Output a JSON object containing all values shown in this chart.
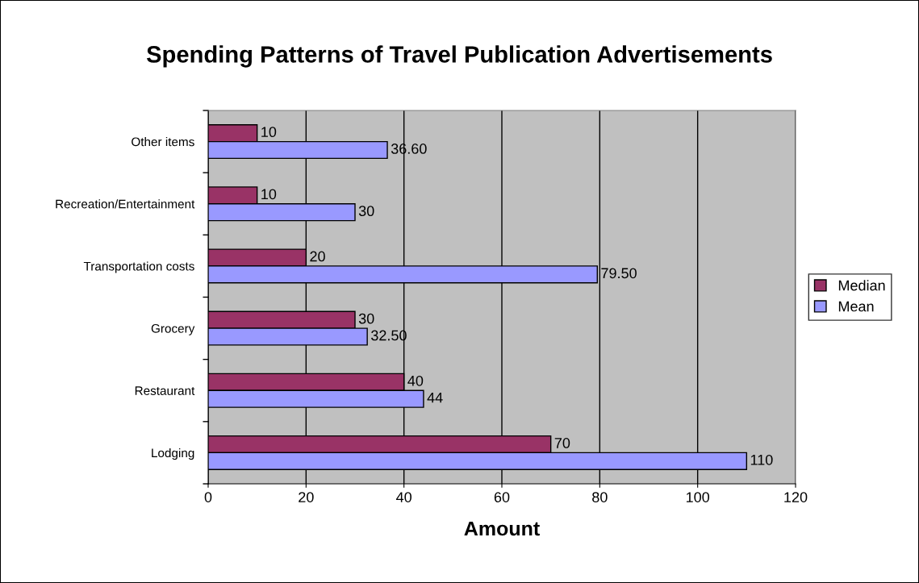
{
  "chart_data": {
    "type": "bar",
    "orientation": "horizontal",
    "title": "Spending Patterns of Travel Publication Advertisements",
    "xlabel": "Amount",
    "categories": [
      "Other items",
      "Recreation/Entertainment",
      "Transportation costs",
      "Grocery",
      "Restaurant",
      "Lodging"
    ],
    "series": [
      {
        "name": "Median",
        "color": "#993366",
        "values": [
          10,
          10,
          20,
          30,
          40,
          70
        ],
        "value_labels": [
          "10",
          "10",
          "20",
          "30",
          "40",
          "70"
        ]
      },
      {
        "name": "Mean",
        "color": "#9999ff",
        "values": [
          36.6,
          30,
          79.5,
          32.5,
          44,
          110
        ],
        "value_labels": [
          "36.60",
          "30",
          "79.50",
          "32.50",
          "44",
          "110"
        ]
      }
    ],
    "xlim": [
      0,
      120
    ],
    "xticks": [
      0,
      20,
      40,
      60,
      80,
      100,
      120
    ],
    "grid": "x",
    "legend": "right"
  }
}
